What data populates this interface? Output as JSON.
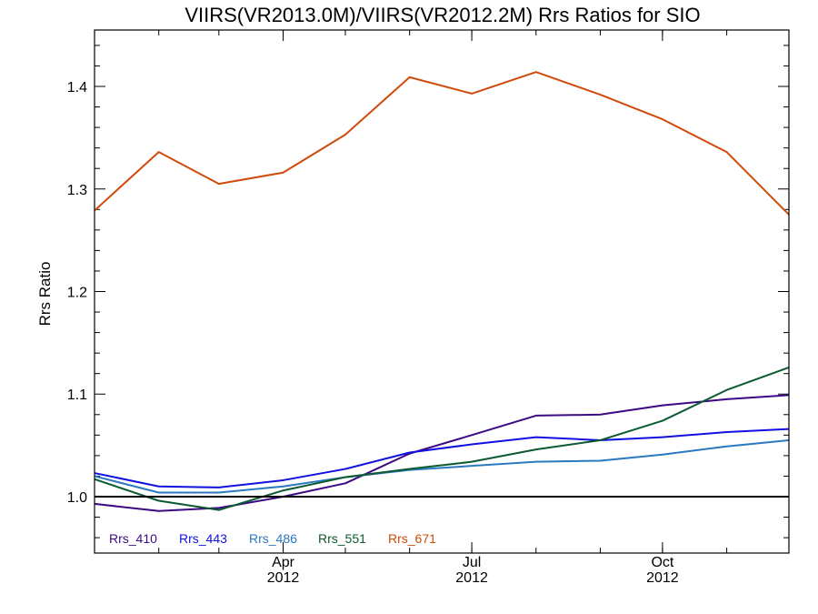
{
  "chart_data": {
    "type": "line",
    "title": "VIIRS(VR2013.0M)/VIIRS(VR2012.2M)  Rrs Ratios for SIO",
    "ylabel": "Rrs Ratio",
    "xlabel": "",
    "ylim": [
      0.945,
      1.455
    ],
    "yticks": [
      "1.0",
      "1.1",
      "1.2",
      "1.3",
      "1.4"
    ],
    "ytick_values": [
      1.0,
      1.1,
      1.2,
      1.3,
      1.4
    ],
    "x_dates": [
      "2012-01-01",
      "2012-02-01",
      "2012-03-01",
      "2012-04-01",
      "2012-05-01",
      "2012-06-01",
      "2012-07-01",
      "2012-08-01",
      "2012-09-01",
      "2012-10-01",
      "2012-11-01",
      "2012-12-01"
    ],
    "xlim": [
      "2012-01-01",
      "2012-12-01"
    ],
    "xtick_labels": [
      {
        "date": "2012-04-01",
        "month": "Apr",
        "year": "2012"
      },
      {
        "date": "2012-07-01",
        "month": "Jul",
        "year": "2012"
      },
      {
        "date": "2012-10-01",
        "month": "Oct",
        "year": "2012"
      }
    ],
    "minor_tick_dates": [
      "2012-02-01",
      "2012-03-01",
      "2012-04-01",
      "2012-05-01",
      "2012-06-01",
      "2012-07-01",
      "2012-08-01",
      "2012-09-01",
      "2012-10-01",
      "2012-11-01"
    ],
    "reference_line": 1.0,
    "legend_placement": "bottom-left",
    "series": [
      {
        "name": "Rrs_410",
        "color": "#3b0a82",
        "values": [
          0.993,
          0.986,
          0.989,
          1.0,
          1.013,
          1.042,
          1.06,
          1.079,
          1.08,
          1.089,
          1.095,
          1.099
        ]
      },
      {
        "name": "Rrs_443",
        "color": "#1010e0",
        "values": [
          1.023,
          1.01,
          1.009,
          1.016,
          1.027,
          1.043,
          1.051,
          1.058,
          1.055,
          1.058,
          1.063,
          1.066
        ]
      },
      {
        "name": "Rrs_486",
        "color": "#2a78c0",
        "values": [
          1.02,
          1.004,
          1.004,
          1.01,
          1.019,
          1.026,
          1.03,
          1.034,
          1.035,
          1.041,
          1.049,
          1.055
        ]
      },
      {
        "name": "Rrs_551",
        "color": "#0c5a30",
        "values": [
          1.017,
          0.996,
          0.987,
          1.006,
          1.019,
          1.027,
          1.034,
          1.046,
          1.055,
          1.074,
          1.104,
          1.126
        ]
      },
      {
        "name": "Rrs_671",
        "color": "#d04a0a",
        "values": [
          1.279,
          1.336,
          1.305,
          1.316,
          1.353,
          1.409,
          1.393,
          1.414,
          1.392,
          1.368,
          1.336,
          1.275
        ]
      }
    ]
  }
}
